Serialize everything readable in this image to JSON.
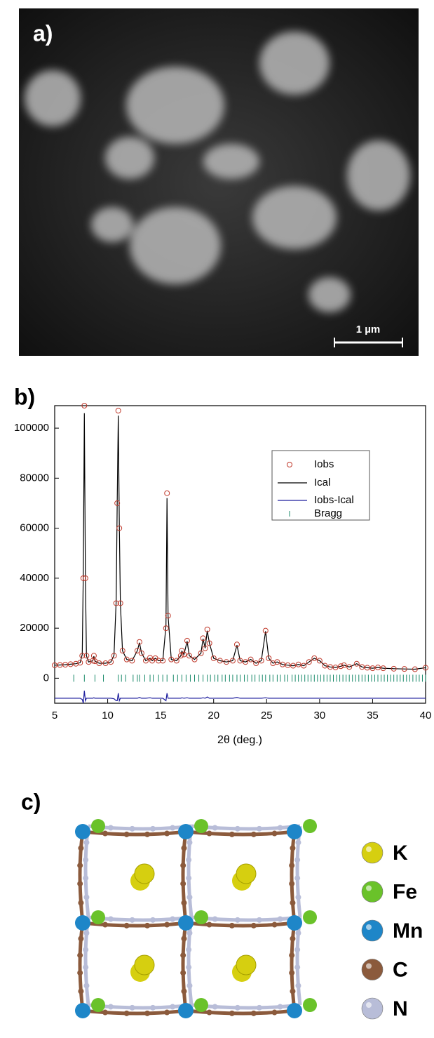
{
  "panel_a": {
    "label": "a)",
    "scale_bar": "1 µm"
  },
  "chart_data": {
    "type": "line",
    "panel_label": "b)",
    "xlabel": "2θ (deg.)",
    "xlim": [
      5,
      40
    ],
    "xticks": [
      5,
      10,
      15,
      20,
      25,
      30,
      35,
      40
    ],
    "ylim": [
      -10000,
      109000
    ],
    "yticks": [
      0,
      20000,
      40000,
      60000,
      80000,
      100000
    ],
    "x": [
      5,
      5.5,
      6,
      6.5,
      7,
      7.4,
      7.6,
      7.7,
      7.8,
      7.9,
      8.0,
      8.2,
      8.6,
      8.7,
      8.8,
      9.2,
      9.8,
      10.3,
      10.6,
      10.8,
      10.9,
      11.0,
      11.1,
      11.2,
      11.4,
      11.8,
      12.3,
      12.8,
      13.0,
      13.2,
      13.6,
      14.0,
      14.2,
      14.5,
      14.8,
      15.2,
      15.5,
      15.6,
      15.7,
      16.0,
      16.5,
      16.9,
      17.0,
      17.2,
      17.5,
      17.7,
      18.2,
      18.8,
      19.0,
      19.2,
      19.4,
      19.6,
      20.0,
      20.6,
      21.2,
      21.8,
      22.2,
      22.5,
      23.0,
      23.5,
      24.0,
      24.5,
      24.9,
      25.2,
      25.6,
      26.0,
      26.5,
      27.0,
      27.5,
      28.0,
      28.5,
      29.0,
      29.5,
      30.0,
      30.5,
      31.0,
      31.5,
      32.0,
      32.3,
      32.8,
      33.5,
      34.0,
      34.5,
      35.0,
      35.5,
      36.0,
      37.0,
      38.0,
      39.0,
      40.0
    ],
    "series": [
      {
        "name": "Iobs",
        "color": "#c0392b",
        "values": [
          5200,
          5300,
          5400,
          5600,
          5800,
          6200,
          9000,
          40000,
          109000,
          40000,
          9000,
          6500,
          7000,
          9000,
          6800,
          6000,
          6000,
          6500,
          9000,
          30000,
          70000,
          107000,
          60000,
          30000,
          11000,
          7500,
          7000,
          11000,
          14500,
          10000,
          7000,
          8200,
          7000,
          8000,
          7000,
          7000,
          20000,
          74000,
          25000,
          7500,
          7000,
          9000,
          11000,
          9500,
          15000,
          9000,
          7500,
          10000,
          16000,
          12000,
          19500,
          14000,
          8000,
          7000,
          6500,
          7000,
          13500,
          7000,
          6500,
          7500,
          6000,
          7000,
          19000,
          8000,
          6000,
          6500,
          5500,
          5200,
          5000,
          5500,
          5000,
          6500,
          8000,
          7000,
          5000,
          4500,
          4300,
          4800,
          5200,
          4500,
          5800,
          4500,
          4200,
          4000,
          4300,
          4000,
          3800,
          3700,
          3600,
          4200
        ]
      },
      {
        "name": "Ical",
        "color": "#000000",
        "values": [
          5200,
          5300,
          5400,
          5600,
          5800,
          6200,
          9500,
          42000,
          106000,
          41000,
          9000,
          6500,
          7000,
          8800,
          6800,
          6000,
          6000,
          6500,
          9200,
          31000,
          71000,
          105000,
          61000,
          30000,
          11000,
          7500,
          7000,
          11000,
          14200,
          10000,
          7000,
          8000,
          7000,
          8000,
          7000,
          7000,
          21000,
          72000,
          25000,
          7500,
          7000,
          9000,
          10800,
          9500,
          14800,
          9000,
          7500,
          10000,
          15800,
          12000,
          19000,
          14000,
          8000,
          7000,
          6500,
          7000,
          13200,
          7000,
          6500,
          7500,
          6000,
          7000,
          18800,
          8000,
          6000,
          6500,
          5500,
          5200,
          5000,
          5500,
          5000,
          6500,
          8000,
          7000,
          5000,
          4500,
          4300,
          4800,
          5200,
          4500,
          5800,
          4500,
          4200,
          4000,
          4300,
          4000,
          3800,
          3700,
          3600,
          4200
        ]
      },
      {
        "name": "Iobs-Ical",
        "color": "#1f1f9e",
        "values": [
          -8000,
          -8000,
          -8000,
          -8000,
          -8000,
          -8000,
          -8500,
          -10000,
          -5000,
          -9000,
          -8000,
          -8000,
          -8000,
          -7800,
          -8000,
          -8000,
          -8000,
          -8000,
          -8200,
          -9000,
          -9000,
          -6000,
          -9000,
          -8000,
          -8000,
          -8000,
          -8000,
          -8000,
          -7700,
          -8000,
          -8000,
          -7800,
          -8000,
          -8000,
          -8000,
          -8000,
          -9000,
          -6000,
          -8000,
          -8000,
          -8000,
          -8000,
          -7800,
          -8000,
          -7800,
          -8000,
          -8000,
          -8000,
          -7800,
          -8000,
          -7500,
          -8000,
          -8000,
          -8000,
          -8000,
          -8000,
          -7700,
          -8000,
          -8000,
          -8000,
          -8000,
          -8000,
          -7800,
          -8000,
          -8000,
          -8000,
          -8000,
          -8000,
          -8000,
          -8000,
          -8000,
          -8000,
          -8000,
          -8000,
          -8000,
          -8000,
          -8000,
          -8000,
          -8000,
          -8000,
          -8000,
          -8000,
          -8000,
          -8000,
          -8000,
          -8000,
          -8000,
          -8000,
          -8000,
          -8000
        ]
      }
    ],
    "bragg": {
      "name": "Bragg",
      "color": "#1a8a6a",
      "x": [
        6.8,
        7.8,
        8.8,
        9.6,
        11.0,
        11.3,
        11.7,
        12.4,
        12.8,
        13.0,
        13.5,
        14.0,
        14.3,
        14.8,
        15.2,
        15.6,
        16.2,
        16.6,
        17.0,
        17.4,
        17.8,
        18.2,
        18.6,
        19.0,
        19.4,
        19.7,
        20.1,
        20.4,
        20.8,
        21.1,
        21.5,
        21.8,
        22.2,
        22.5,
        22.9,
        23.2,
        23.6,
        23.9,
        24.3,
        24.6,
        24.9,
        25.3,
        25.6,
        26.0,
        26.3,
        26.7,
        27.0,
        27.4,
        27.7,
        28.0,
        28.3,
        28.6,
        28.9,
        29.2,
        29.5,
        29.8,
        30.1,
        30.4,
        30.7,
        31.0,
        31.3,
        31.6,
        31.9,
        32.2,
        32.5,
        32.8,
        33.1,
        33.4,
        33.7,
        34.0,
        34.3,
        34.6,
        34.9,
        35.2,
        35.5,
        35.8,
        36.1,
        36.4,
        36.7,
        37.0,
        37.3,
        37.6,
        37.9,
        38.2,
        38.5,
        38.8,
        39.1,
        39.4,
        39.7,
        40.0
      ]
    }
  },
  "panel_c": {
    "label": "c)",
    "legend": [
      {
        "name": "K",
        "color": "#d6cf10"
      },
      {
        "name": "Fe",
        "color": "#6ac22a"
      },
      {
        "name": "Mn",
        "color": "#1e86c8"
      },
      {
        "name": "C",
        "color": "#8b5a3c"
      },
      {
        "name": "N",
        "color": "#b8bdd8"
      }
    ]
  }
}
